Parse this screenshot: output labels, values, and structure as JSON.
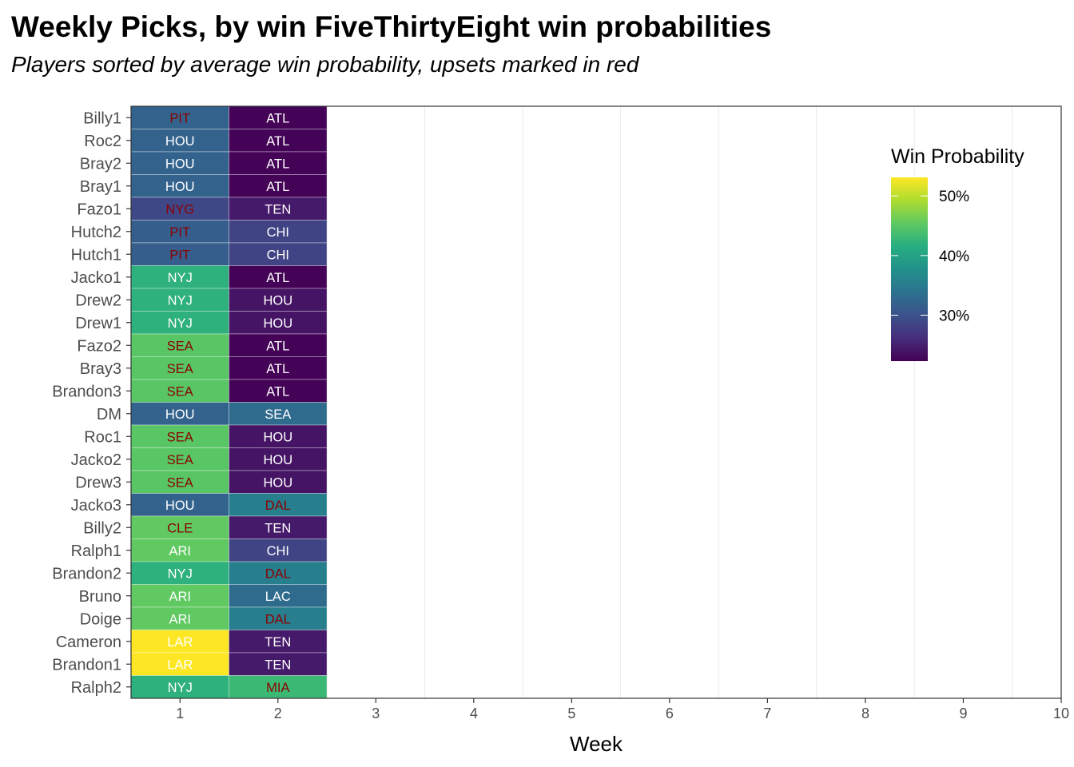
{
  "chart_data": {
    "type": "heatmap",
    "title": "Weekly Picks, by win FiveThirtyEight win probabilities",
    "subtitle": "Players sorted by average win probability, upsets marked in red",
    "xlabel": "Week",
    "ylabel": "",
    "x_ticks": [
      "1",
      "2",
      "3",
      "4",
      "5",
      "6",
      "7",
      "8",
      "9",
      "10"
    ],
    "xlim": [
      0.5,
      10
    ],
    "grid": true,
    "legend": {
      "title": "Win Probability",
      "placement": "right",
      "labels": [
        "50%",
        "40%",
        "30%"
      ],
      "label_values": [
        0.5,
        0.4,
        0.3
      ],
      "range": [
        0.223,
        0.531
      ]
    },
    "colors": {
      "upset_text": "#8b0000",
      "normal_text": "#ffffff",
      "grid": "#ebebeb",
      "panel_border": "#333333"
    },
    "players": [
      "Billy1",
      "Roc2",
      "Bray2",
      "Bray1",
      "Fazo1",
      "Hutch2",
      "Hutch1",
      "Jacko1",
      "Drew2",
      "Drew1",
      "Fazo2",
      "Bray3",
      "Brandon3",
      "DM",
      "Roc1",
      "Jacko2",
      "Drew3",
      "Jacko3",
      "Billy2",
      "Ralph1",
      "Brandon2",
      "Bruno",
      "Doige",
      "Cameron",
      "Brandon1",
      "Ralph2"
    ],
    "picks": [
      {
        "player": "Billy1",
        "week": 1,
        "team": "PIT",
        "win_prob": 0.32,
        "upset": true
      },
      {
        "player": "Billy1",
        "week": 2,
        "team": "ATL",
        "win_prob": 0.225,
        "upset": false
      },
      {
        "player": "Roc2",
        "week": 1,
        "team": "HOU",
        "win_prob": 0.32,
        "upset": false
      },
      {
        "player": "Roc2",
        "week": 2,
        "team": "ATL",
        "win_prob": 0.225,
        "upset": false
      },
      {
        "player": "Bray2",
        "week": 1,
        "team": "HOU",
        "win_prob": 0.32,
        "upset": false
      },
      {
        "player": "Bray2",
        "week": 2,
        "team": "ATL",
        "win_prob": 0.225,
        "upset": false
      },
      {
        "player": "Bray1",
        "week": 1,
        "team": "HOU",
        "win_prob": 0.32,
        "upset": false
      },
      {
        "player": "Bray1",
        "week": 2,
        "team": "ATL",
        "win_prob": 0.225,
        "upset": false
      },
      {
        "player": "Fazo1",
        "week": 1,
        "team": "NYG",
        "win_prob": 0.29,
        "upset": true
      },
      {
        "player": "Fazo1",
        "week": 2,
        "team": "TEN",
        "win_prob": 0.245,
        "upset": false
      },
      {
        "player": "Hutch2",
        "week": 1,
        "team": "PIT",
        "win_prob": 0.315,
        "upset": true
      },
      {
        "player": "Hutch2",
        "week": 2,
        "team": "CHI",
        "win_prob": 0.285,
        "upset": false
      },
      {
        "player": "Hutch1",
        "week": 1,
        "team": "PIT",
        "win_prob": 0.315,
        "upset": true
      },
      {
        "player": "Hutch1",
        "week": 2,
        "team": "CHI",
        "win_prob": 0.285,
        "upset": false
      },
      {
        "player": "Jacko1",
        "week": 1,
        "team": "NYJ",
        "win_prob": 0.42,
        "upset": false
      },
      {
        "player": "Jacko1",
        "week": 2,
        "team": "ATL",
        "win_prob": 0.225,
        "upset": false
      },
      {
        "player": "Drew2",
        "week": 1,
        "team": "NYJ",
        "win_prob": 0.42,
        "upset": false
      },
      {
        "player": "Drew2",
        "week": 2,
        "team": "HOU",
        "win_prob": 0.24,
        "upset": false
      },
      {
        "player": "Drew1",
        "week": 1,
        "team": "NYJ",
        "win_prob": 0.42,
        "upset": false
      },
      {
        "player": "Drew1",
        "week": 2,
        "team": "HOU",
        "win_prob": 0.24,
        "upset": false
      },
      {
        "player": "Fazo2",
        "week": 1,
        "team": "SEA",
        "win_prob": 0.45,
        "upset": true
      },
      {
        "player": "Fazo2",
        "week": 2,
        "team": "ATL",
        "win_prob": 0.225,
        "upset": false
      },
      {
        "player": "Bray3",
        "week": 1,
        "team": "SEA",
        "win_prob": 0.45,
        "upset": true
      },
      {
        "player": "Bray3",
        "week": 2,
        "team": "ATL",
        "win_prob": 0.225,
        "upset": false
      },
      {
        "player": "Brandon3",
        "week": 1,
        "team": "SEA",
        "win_prob": 0.45,
        "upset": true
      },
      {
        "player": "Brandon3",
        "week": 2,
        "team": "ATL",
        "win_prob": 0.225,
        "upset": false
      },
      {
        "player": "DM",
        "week": 1,
        "team": "HOU",
        "win_prob": 0.32,
        "upset": false
      },
      {
        "player": "DM",
        "week": 2,
        "team": "SEA",
        "win_prob": 0.33,
        "upset": false
      },
      {
        "player": "Roc1",
        "week": 1,
        "team": "SEA",
        "win_prob": 0.45,
        "upset": true
      },
      {
        "player": "Roc1",
        "week": 2,
        "team": "HOU",
        "win_prob": 0.24,
        "upset": false
      },
      {
        "player": "Jacko2",
        "week": 1,
        "team": "SEA",
        "win_prob": 0.45,
        "upset": true
      },
      {
        "player": "Jacko2",
        "week": 2,
        "team": "HOU",
        "win_prob": 0.24,
        "upset": false
      },
      {
        "player": "Drew3",
        "week": 1,
        "team": "SEA",
        "win_prob": 0.45,
        "upset": true
      },
      {
        "player": "Drew3",
        "week": 2,
        "team": "HOU",
        "win_prob": 0.24,
        "upset": false
      },
      {
        "player": "Jacko3",
        "week": 1,
        "team": "HOU",
        "win_prob": 0.32,
        "upset": false
      },
      {
        "player": "Jacko3",
        "week": 2,
        "team": "DAL",
        "win_prob": 0.355,
        "upset": true
      },
      {
        "player": "Billy2",
        "week": 1,
        "team": "CLE",
        "win_prob": 0.455,
        "upset": true
      },
      {
        "player": "Billy2",
        "week": 2,
        "team": "TEN",
        "win_prob": 0.245,
        "upset": false
      },
      {
        "player": "Ralph1",
        "week": 1,
        "team": "ARI",
        "win_prob": 0.455,
        "upset": false
      },
      {
        "player": "Ralph1",
        "week": 2,
        "team": "CHI",
        "win_prob": 0.285,
        "upset": false
      },
      {
        "player": "Brandon2",
        "week": 1,
        "team": "NYJ",
        "win_prob": 0.42,
        "upset": false
      },
      {
        "player": "Brandon2",
        "week": 2,
        "team": "DAL",
        "win_prob": 0.355,
        "upset": true
      },
      {
        "player": "Bruno",
        "week": 1,
        "team": "ARI",
        "win_prob": 0.455,
        "upset": false
      },
      {
        "player": "Bruno",
        "week": 2,
        "team": "LAC",
        "win_prob": 0.33,
        "upset": false
      },
      {
        "player": "Doige",
        "week": 1,
        "team": "ARI",
        "win_prob": 0.455,
        "upset": false
      },
      {
        "player": "Doige",
        "week": 2,
        "team": "DAL",
        "win_prob": 0.355,
        "upset": true
      },
      {
        "player": "Cameron",
        "week": 1,
        "team": "LAR",
        "win_prob": 0.531,
        "upset": false
      },
      {
        "player": "Cameron",
        "week": 2,
        "team": "TEN",
        "win_prob": 0.245,
        "upset": false
      },
      {
        "player": "Brandon1",
        "week": 1,
        "team": "LAR",
        "win_prob": 0.531,
        "upset": false
      },
      {
        "player": "Brandon1",
        "week": 2,
        "team": "TEN",
        "win_prob": 0.245,
        "upset": false
      },
      {
        "player": "Ralph2",
        "week": 1,
        "team": "NYJ",
        "win_prob": 0.42,
        "upset": false
      },
      {
        "player": "Ralph2",
        "week": 2,
        "team": "MIA",
        "win_prob": 0.43,
        "upset": true
      }
    ]
  }
}
